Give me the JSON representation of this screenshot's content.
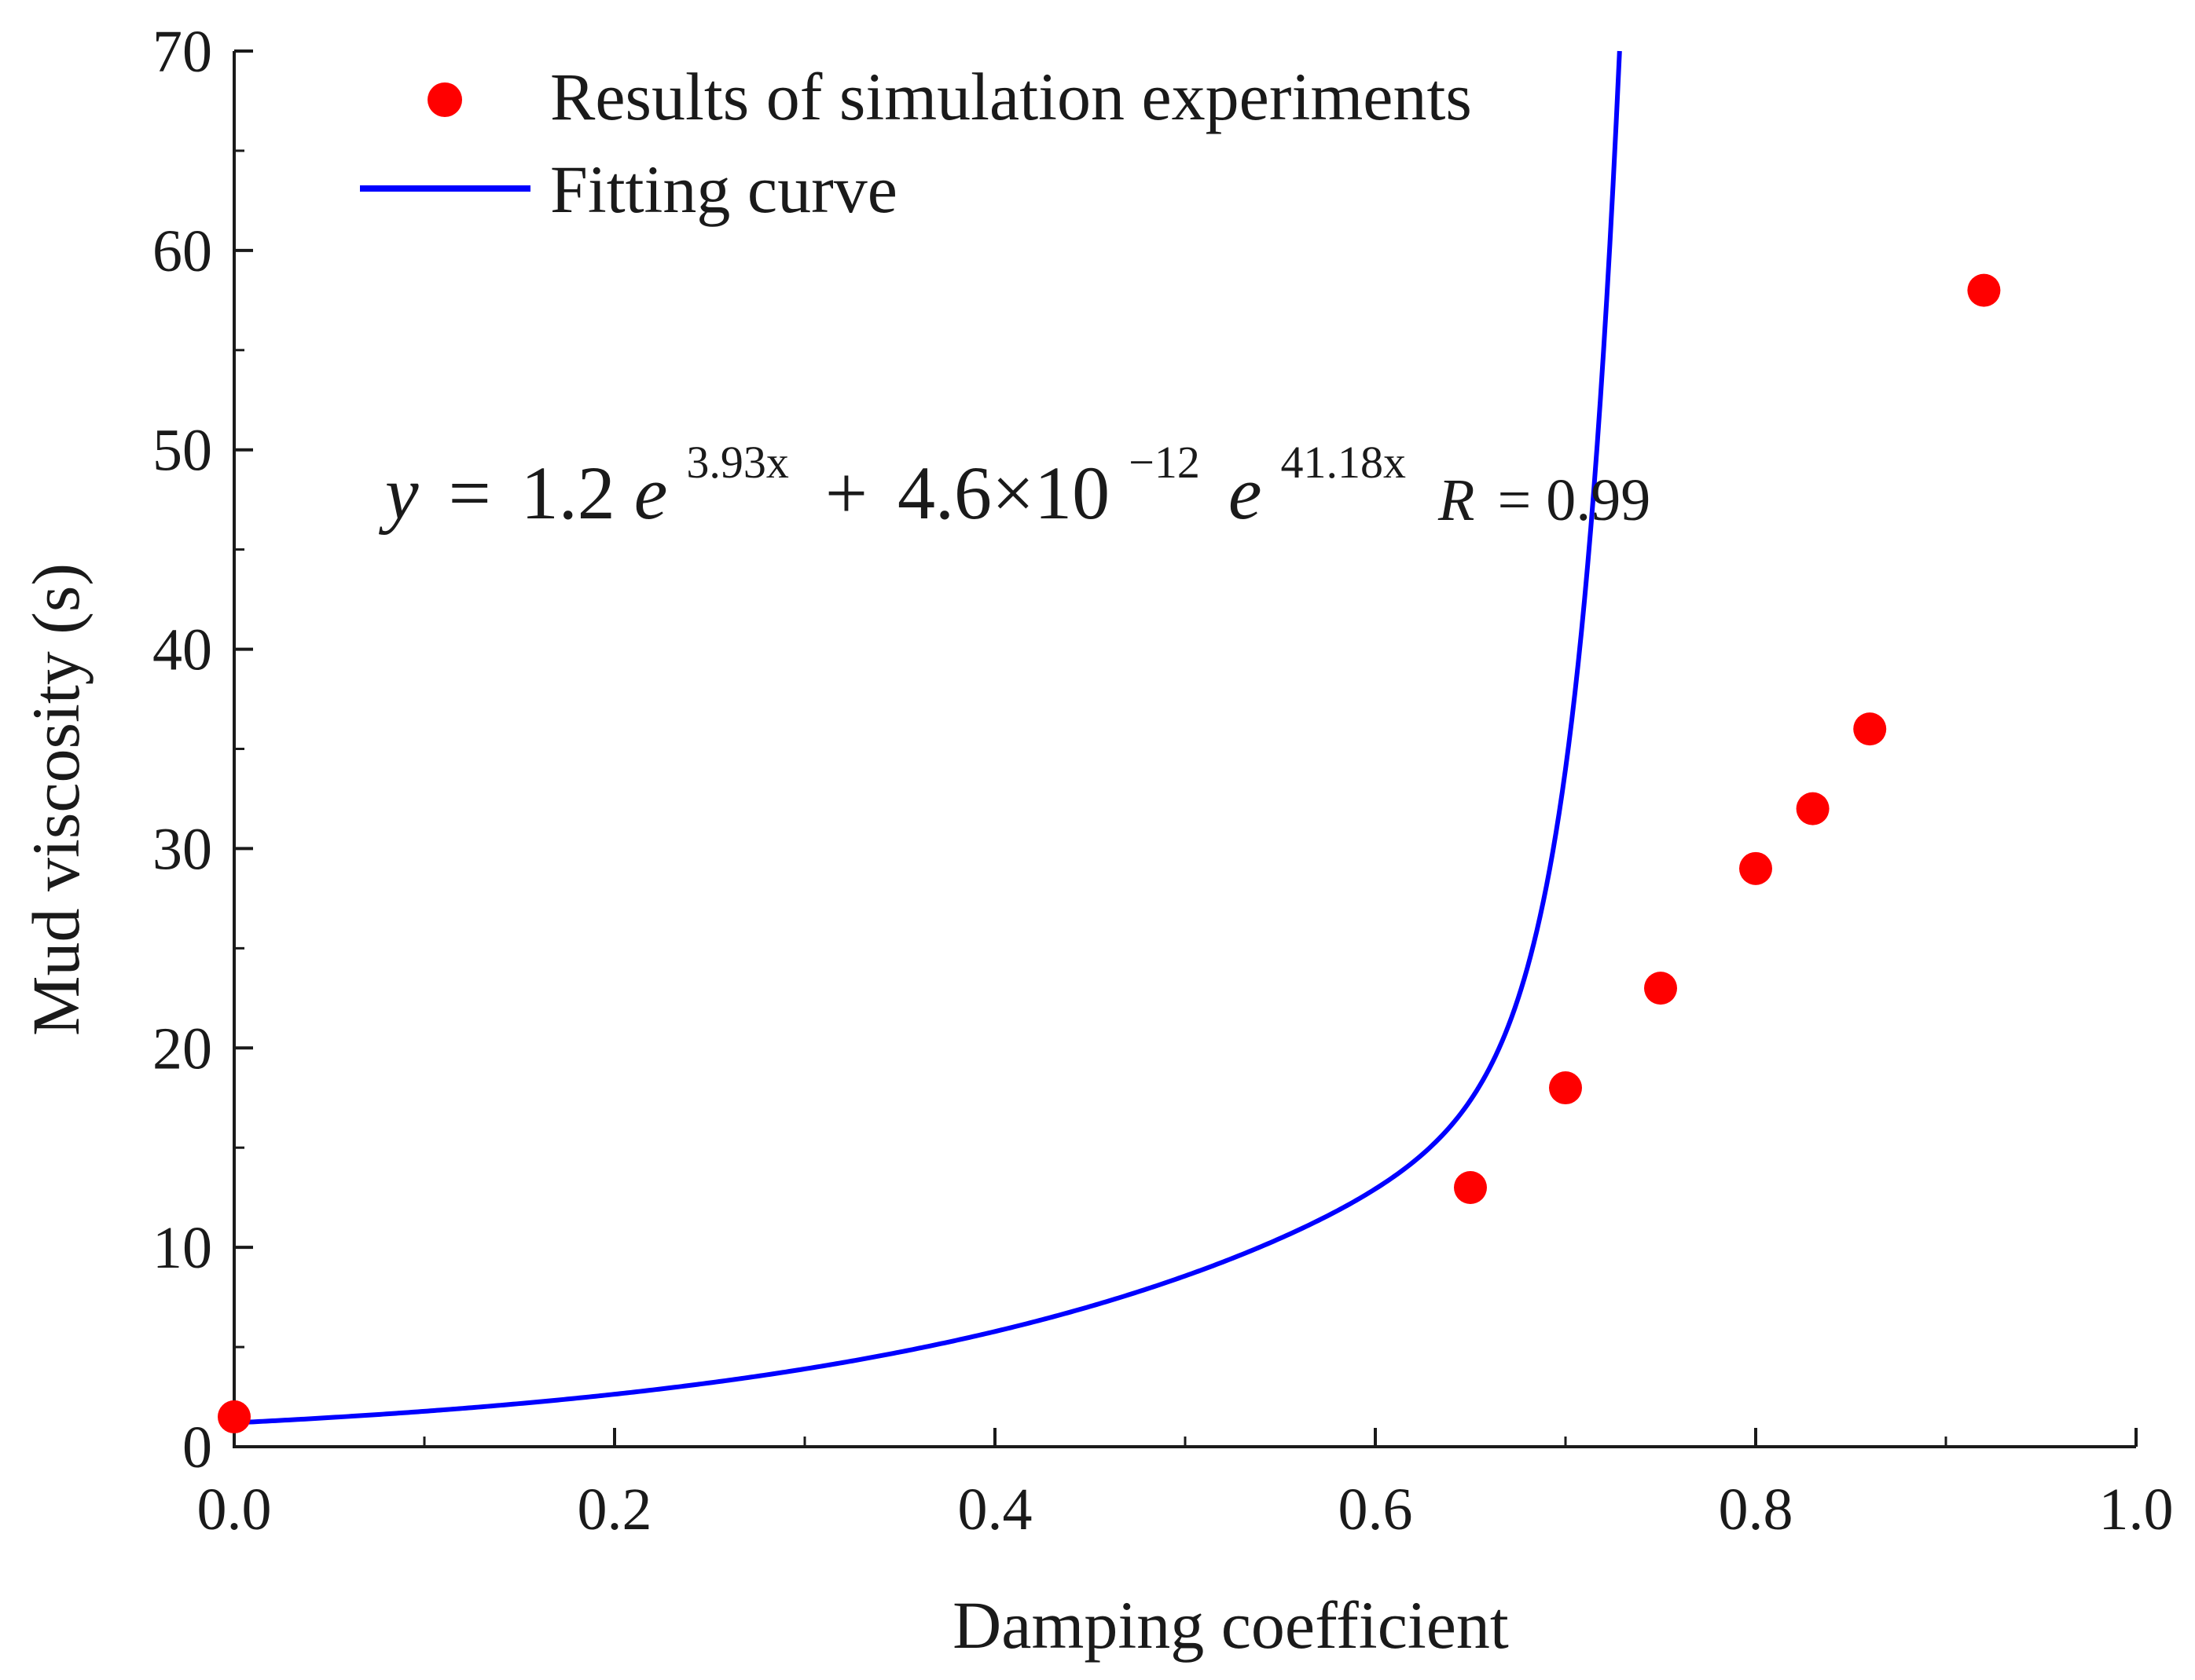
{
  "chart_data": {
    "type": "scatter",
    "title": "",
    "xlabel": "Damping coefficient",
    "ylabel": "Mud viscosity (s)",
    "xlim": [
      0.0,
      1.0
    ],
    "ylim": [
      0,
      70
    ],
    "x_ticks": [
      0.0,
      0.2,
      0.4,
      0.6,
      0.8,
      1.0
    ],
    "x_tick_labels": [
      "0.0",
      "0.2",
      "0.4",
      "0.6",
      "0.8",
      "1.0"
    ],
    "y_ticks": [
      0,
      10,
      20,
      30,
      40,
      50,
      60,
      70
    ],
    "y_tick_labels": [
      "0",
      "10",
      "20",
      "30",
      "40",
      "50",
      "60",
      "70"
    ],
    "grid": false,
    "legend_position": "top-left",
    "series": [
      {
        "name": "Results of simulation experiments",
        "kind": "scatter",
        "color": "#ff0000",
        "x": [
          0.0,
          0.65,
          0.7,
          0.75,
          0.8,
          0.83,
          0.86,
          0.92
        ],
        "y": [
          1.5,
          13,
          18,
          23,
          29,
          32,
          36,
          58
        ]
      },
      {
        "name": "Fitting curve",
        "kind": "line",
        "color": "#0000ff",
        "model": {
          "a": 1.2,
          "b": 3.93,
          "c": 4.6e-12,
          "d": 41.18
        }
      }
    ],
    "annotation": {
      "y": "y",
      "eq": "=",
      "term1_coef": "1.2",
      "e": "e",
      "term1_exp": "3.93x",
      "plus": "+",
      "term2_coef": "4.6×10",
      "term2_pow": "−12",
      "term2_exp": "41.18x",
      "r_label": "R",
      "r_value": "= 0.99"
    }
  }
}
